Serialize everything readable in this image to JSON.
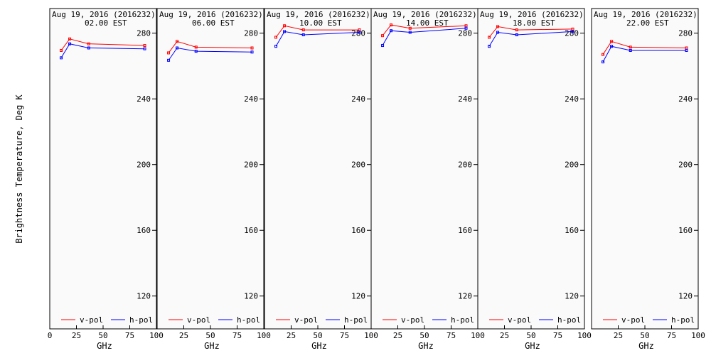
{
  "figure": {
    "ylabel": "Brightness Temperature, Deg K",
    "xlabel": "GHz",
    "legend": [
      {
        "name": "v-pol",
        "color": "#ff0000"
      },
      {
        "name": "h-pol",
        "color": "#0000ff"
      }
    ]
  },
  "chart_data": [
    {
      "type": "line",
      "title": "Aug 19, 2016 (2016232)",
      "subtitle": "02.00 EST",
      "xlim": [
        0,
        100
      ],
      "ylim": [
        100,
        295
      ],
      "xticks": [
        0,
        25,
        50,
        75,
        100
      ],
      "yticks": [
        120,
        160,
        200,
        240,
        280
      ],
      "legend_position": "bottom",
      "x": [
        10.7,
        18.7,
        36.5,
        89.0
      ],
      "series": [
        {
          "name": "v-pol",
          "color": "#ff0000",
          "values": [
            269.5,
            276.5,
            273.5,
            272.5
          ]
        },
        {
          "name": "h-pol",
          "color": "#0000ff",
          "values": [
            265.0,
            273.5,
            271.0,
            270.5
          ]
        }
      ]
    },
    {
      "type": "line",
      "title": "Aug 19, 2016 (2016232)",
      "subtitle": "06.00 EST",
      "xlim": [
        0,
        100
      ],
      "ylim": [
        100,
        295
      ],
      "xticks": [
        0,
        25,
        50,
        75,
        100
      ],
      "yticks": [
        120,
        160,
        200,
        240,
        280
      ],
      "legend_position": "bottom",
      "x": [
        10.7,
        18.7,
        36.5,
        89.0
      ],
      "series": [
        {
          "name": "v-pol",
          "color": "#ff0000",
          "values": [
            268.0,
            275.0,
            271.5,
            271.0
          ]
        },
        {
          "name": "h-pol",
          "color": "#0000ff",
          "values": [
            263.5,
            271.0,
            269.0,
            268.5
          ]
        }
      ]
    },
    {
      "type": "line",
      "title": "Aug 19, 2016 (2016232)",
      "subtitle": "10.00 EST",
      "xlim": [
        0,
        100
      ],
      "ylim": [
        100,
        295
      ],
      "xticks": [
        0,
        25,
        50,
        75,
        100
      ],
      "yticks": [
        120,
        160,
        200,
        240,
        280
      ],
      "legend_position": "bottom",
      "x": [
        10.7,
        18.7,
        36.5,
        89.0
      ],
      "series": [
        {
          "name": "v-pol",
          "color": "#ff0000",
          "values": [
            277.5,
            284.5,
            282.0,
            282.0
          ]
        },
        {
          "name": "h-pol",
          "color": "#0000ff",
          "values": [
            272.0,
            281.0,
            279.0,
            280.5
          ]
        }
      ]
    },
    {
      "type": "line",
      "title": "Aug 19, 2016 (2016232)",
      "subtitle": "14.00 EST",
      "xlim": [
        0,
        100
      ],
      "ylim": [
        100,
        295
      ],
      "xticks": [
        0,
        25,
        50,
        75,
        100
      ],
      "yticks": [
        120,
        160,
        200,
        240,
        280
      ],
      "legend_position": "bottom",
      "x": [
        10.7,
        18.7,
        36.5,
        89.0
      ],
      "series": [
        {
          "name": "v-pol",
          "color": "#ff0000",
          "values": [
            278.5,
            285.0,
            283.0,
            284.5
          ]
        },
        {
          "name": "h-pol",
          "color": "#0000ff",
          "values": [
            272.5,
            281.5,
            280.5,
            283.0
          ]
        }
      ]
    },
    {
      "type": "line",
      "title": "Aug 19, 2016 (2016232)",
      "subtitle": "18.00 EST",
      "xlim": [
        0,
        100
      ],
      "ylim": [
        100,
        295
      ],
      "xticks": [
        0,
        25,
        50,
        75,
        100
      ],
      "yticks": [
        120,
        160,
        200,
        240,
        280
      ],
      "legend_position": "bottom",
      "x": [
        10.7,
        18.7,
        36.5,
        89.0
      ],
      "series": [
        {
          "name": "v-pol",
          "color": "#ff0000",
          "values": [
            277.5,
            284.0,
            282.0,
            282.5
          ]
        },
        {
          "name": "h-pol",
          "color": "#0000ff",
          "values": [
            272.0,
            280.5,
            279.0,
            281.0
          ]
        }
      ]
    },
    {
      "type": "line",
      "title": "Aug 19, 2016 (2016232)",
      "subtitle": "22.00 EST",
      "xlim": [
        0,
        100
      ],
      "ylim": [
        100,
        295
      ],
      "xticks": [
        0,
        25,
        50,
        75,
        100
      ],
      "yticks": [
        120,
        160,
        200,
        240,
        280
      ],
      "legend_position": "bottom",
      "x": [
        10.7,
        18.7,
        36.5,
        89.0
      ],
      "series": [
        {
          "name": "v-pol",
          "color": "#ff0000",
          "values": [
            267.0,
            275.0,
            271.5,
            271.0
          ]
        },
        {
          "name": "h-pol",
          "color": "#0000ff",
          "values": [
            262.5,
            272.0,
            269.5,
            269.5
          ]
        }
      ]
    }
  ]
}
